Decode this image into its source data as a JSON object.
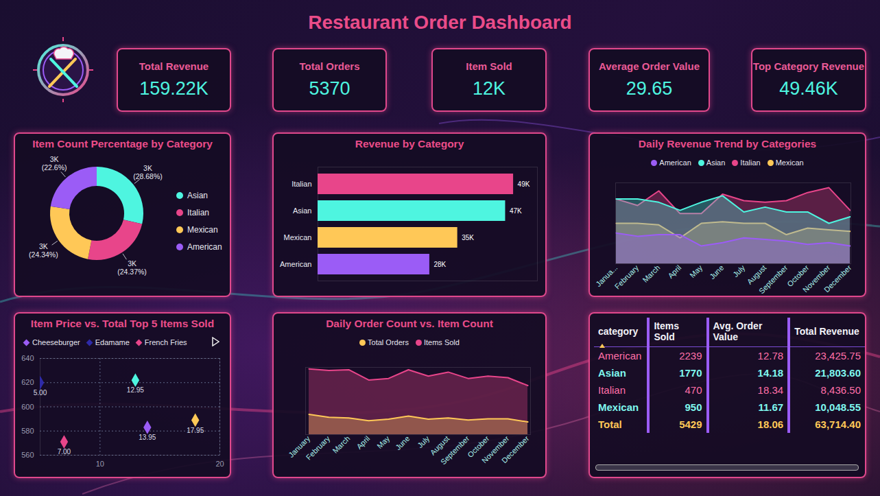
{
  "title": "Restaurant Order Dashboard",
  "kpis": [
    {
      "label": "Total Revenue",
      "value": "159.22K"
    },
    {
      "label": "Total Orders",
      "value": "5370"
    },
    {
      "label": "Item Sold",
      "value": "12K"
    },
    {
      "label": "Average Order Value",
      "value": "29.65"
    },
    {
      "label": "Top Category Revenue",
      "value": "49.46K"
    }
  ],
  "chart_data": [
    {
      "type": "donut",
      "title": "Item Count Percentage by Category",
      "categories": [
        "Asian",
        "Italian",
        "Mexican",
        "American"
      ],
      "values": [
        28.68,
        24.37,
        24.34,
        22.6
      ],
      "value_labels": [
        "3K (28.68%)",
        "3K (24.37%)",
        "3K (24.34%)",
        "3K (22.6%)"
      ],
      "colors": [
        "#4ef5e0",
        "#e8458a",
        "#ffc857",
        "#9b5cf6"
      ],
      "data_labels": true,
      "legend": "right"
    },
    {
      "type": "bar",
      "title": "Revenue by Category",
      "orientation": "horizontal",
      "categories": [
        "Italian",
        "Asian",
        "Mexican",
        "American"
      ],
      "values": [
        49,
        47,
        35,
        28
      ],
      "value_labels": [
        "49K",
        "47K",
        "35K",
        "28K"
      ],
      "colors": [
        "#e8458a",
        "#4ef5e0",
        "#ffc857",
        "#9b5cf6"
      ],
      "xlim": [
        0,
        55
      ],
      "data_labels": true,
      "tick_labels": "y"
    },
    {
      "type": "area",
      "title": "Daily Revenue Trend by Categories",
      "categories": [
        "Janua...",
        "February",
        "March",
        "April",
        "May",
        "June",
        "July",
        "August",
        "September",
        "October",
        "November",
        "December"
      ],
      "series": [
        {
          "name": "American",
          "color": "#9b5cf6",
          "values": [
            1.9,
            1.7,
            1.8,
            1.8,
            1.1,
            1.3,
            1.6,
            1.5,
            1.4,
            1.2,
            1.3,
            1.1
          ]
        },
        {
          "name": "Asian",
          "color": "#4ef5e0",
          "values": [
            4.0,
            4.0,
            3.8,
            3.3,
            3.8,
            4.2,
            3.2,
            3.5,
            3.2,
            3.2,
            2.5,
            2.9
          ]
        },
        {
          "name": "Italian",
          "color": "#e8458a",
          "values": [
            4.0,
            3.6,
            4.5,
            3.1,
            3.1,
            4.3,
            3.9,
            3.8,
            3.9,
            4.4,
            4.7,
            3.3
          ]
        },
        {
          "name": "Mexican",
          "color": "#ffc857",
          "values": [
            2.5,
            2.5,
            2.4,
            1.6,
            2.5,
            2.6,
            2.5,
            2.5,
            1.8,
            2.2,
            2.1,
            2.0
          ]
        }
      ],
      "ylim": [
        0,
        5
      ],
      "tick_labels": "x",
      "legend": "top"
    },
    {
      "type": "scatter",
      "title": "Item Price vs. Total Top 5 Items Sold",
      "x": [
        13.95,
        5,
        7,
        12.95,
        17.95
      ],
      "values": [
        583,
        620,
        571,
        622,
        589
      ],
      "names": [
        "Cheeseburger",
        "Edamame",
        "French Fries",
        null,
        null
      ],
      "colors": [
        "#9b5cf6",
        "#2e2aa8",
        "#e8458a",
        "#4ef5e0",
        "#ffc857"
      ],
      "x_labels": [
        "13.95",
        "5.00",
        "7.00",
        "12.95",
        "17.95"
      ],
      "marker": "diamond",
      "xlim": [
        5,
        20
      ],
      "xticks": [
        10,
        20
      ],
      "ylim": [
        560,
        640
      ],
      "yticks": [
        560,
        580,
        600,
        620,
        640
      ],
      "grid": true,
      "data_labels": true,
      "legend": "top"
    },
    {
      "type": "area",
      "title": "Daily Order Count vs. Item Count",
      "categories": [
        "January",
        "February",
        "March",
        "April",
        "May",
        "June",
        "July",
        "August",
        "September",
        "October",
        "November",
        "December"
      ],
      "series": [
        {
          "name": "Total Orders",
          "color": "#ffc857",
          "values": [
            505,
            470,
            460,
            425,
            445,
            485,
            445,
            460,
            435,
            450,
            450,
            410
          ]
        },
        {
          "name": "Items Sold",
          "color": "#e8458a",
          "values": [
            1080,
            1060,
            1070,
            940,
            960,
            1070,
            990,
            1040,
            960,
            990,
            970,
            870
          ]
        }
      ],
      "ylim": [
        250,
        1100
      ],
      "tick_labels": "x",
      "legend": "top"
    }
  ],
  "table": {
    "columns": [
      "category",
      "Items Sold",
      "Avg. Order Value",
      "Total Revenue"
    ],
    "rows": [
      [
        "American",
        "2239",
        "12.78",
        "23,425.75"
      ],
      [
        "Asian",
        "1770",
        "14.18",
        "21,803.60"
      ],
      [
        "Italian",
        "470",
        "18.34",
        "8,436.50"
      ],
      [
        "Mexican",
        "950",
        "11.67",
        "10,048.55"
      ]
    ],
    "total": [
      "Total",
      "5429",
      "18.06",
      "63,714.40"
    ]
  }
}
